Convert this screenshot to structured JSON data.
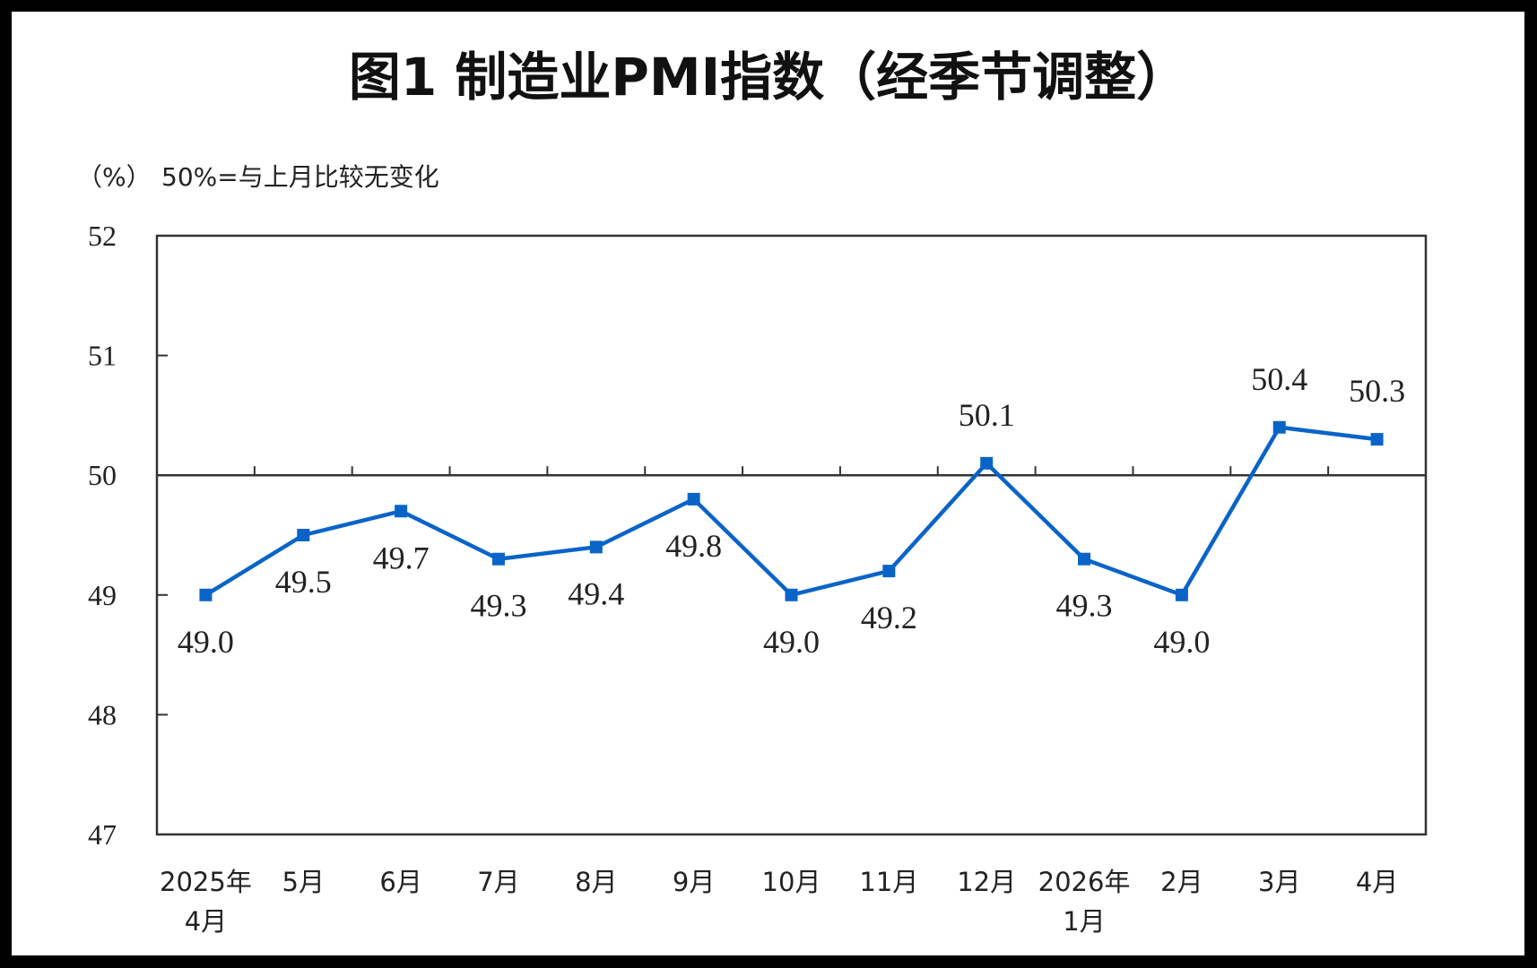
{
  "chart_data": {
    "type": "line",
    "title": "图1 制造业PMI指数（经季节调整）",
    "ylabel": "（%）",
    "annotation": "50%=与上月比较无变化",
    "categories": [
      [
        "2025年",
        "4月"
      ],
      [
        "5月"
      ],
      [
        "6月"
      ],
      [
        "7月"
      ],
      [
        "8月"
      ],
      [
        "9月"
      ],
      [
        "10月"
      ],
      [
        "11月"
      ],
      [
        "12月"
      ],
      [
        "2026年",
        "1月"
      ],
      [
        "2月"
      ],
      [
        "3月"
      ],
      [
        "4月"
      ]
    ],
    "values": [
      49.0,
      49.5,
      49.7,
      49.3,
      49.4,
      49.8,
      49.0,
      49.2,
      50.1,
      49.3,
      49.0,
      50.4,
      50.3
    ],
    "data_labels": [
      "49.0",
      "49.5",
      "49.7",
      "49.3",
      "49.4",
      "49.8",
      "49.0",
      "49.2",
      "50.1",
      "49.3",
      "49.0",
      "50.4",
      "50.3"
    ],
    "ylim": [
      47,
      52
    ],
    "yticks": [
      47,
      48,
      49,
      50,
      51,
      52
    ],
    "reference_line": 50,
    "grid": false,
    "marker": "square",
    "color": "#0a64c8"
  }
}
